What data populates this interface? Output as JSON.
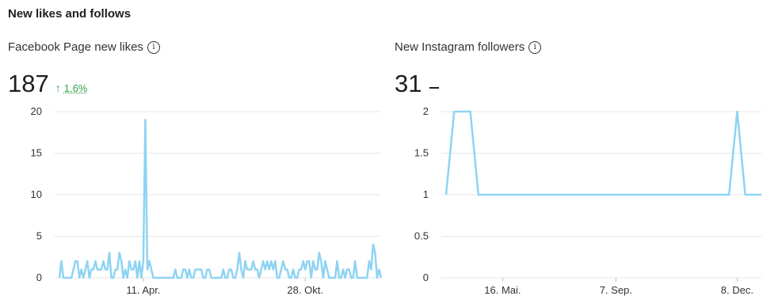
{
  "section": {
    "title": "New likes and follows"
  },
  "facebook": {
    "title": "Facebook Page new likes",
    "value": "187",
    "trend_percent": "1.6%",
    "trend_direction": "up"
  },
  "instagram": {
    "title": "New Instagram followers",
    "value": "31",
    "trend_direction": "flat"
  },
  "colors": {
    "line": "#8dd4f2",
    "grid": "#e4e6eb",
    "trend_up": "#31a24c",
    "text": "#1c1e21"
  },
  "icons": {
    "info": "info-circle-icon",
    "trend_up": "arrow-up-icon"
  },
  "chart_data": [
    {
      "type": "line",
      "title": "Facebook Page new likes",
      "ylim": [
        0,
        20
      ],
      "yticks": [
        "0",
        "5",
        "10",
        "15",
        "20"
      ],
      "xtick_labels": [
        {
          "label": "11. Apr.",
          "index": 42
        },
        {
          "label": "28. Okt.",
          "index": 123
        }
      ],
      "grid": true,
      "series": [
        {
          "values": [
            0,
            2,
            0,
            0,
            0,
            0,
            0,
            1,
            2,
            2,
            0,
            1,
            0,
            1,
            2,
            0,
            1,
            1,
            2,
            1,
            1,
            1,
            2,
            1,
            1,
            3,
            0,
            0,
            1,
            1,
            3,
            2,
            0,
            1,
            0,
            2,
            1,
            1,
            2,
            0,
            2,
            0,
            2,
            19,
            1,
            2,
            1,
            0,
            0,
            0,
            0,
            0,
            0,
            0,
            0,
            0,
            0,
            0,
            1,
            0,
            0,
            0,
            1,
            1,
            0,
            1,
            0,
            0,
            1,
            1,
            1,
            1,
            0,
            0,
            1,
            1,
            0,
            0,
            0,
            0,
            0,
            0,
            1,
            0,
            0,
            1,
            1,
            0,
            0,
            1,
            3,
            1,
            0,
            2,
            1,
            1,
            1,
            2,
            1,
            1,
            0,
            1,
            2,
            1,
            2,
            1,
            2,
            1,
            2,
            0,
            0,
            1,
            2,
            1,
            1,
            0,
            0,
            1,
            0,
            0,
            1,
            1,
            2,
            1,
            2,
            2,
            0,
            2,
            1,
            1,
            3,
            2,
            0,
            2,
            1,
            0,
            0,
            0,
            0,
            2,
            0,
            0,
            1,
            0,
            1,
            1,
            0,
            0,
            2,
            0,
            0,
            0,
            0,
            0,
            0,
            2,
            1,
            4,
            3,
            0,
            1,
            0
          ]
        }
      ]
    },
    {
      "type": "line",
      "title": "New Instagram followers",
      "ylim": [
        0,
        2
      ],
      "yticks": [
        "0",
        "0.5",
        "1",
        "1.5",
        "2"
      ],
      "xtick_labels": [
        {
          "label": "16. Mai.",
          "index": 7
        },
        {
          "label": "7. Sep.",
          "index": 21
        },
        {
          "label": "8. Dec.",
          "index": 36
        }
      ],
      "grid": true,
      "series": [
        {
          "values": [
            1,
            2,
            2,
            2,
            1,
            1,
            1,
            1,
            1,
            1,
            1,
            1,
            1,
            1,
            1,
            1,
            1,
            1,
            1,
            1,
            1,
            1,
            1,
            1,
            1,
            1,
            1,
            1,
            1,
            1,
            1,
            1,
            1,
            1,
            1,
            1,
            2,
            1,
            1,
            1
          ]
        }
      ]
    }
  ]
}
